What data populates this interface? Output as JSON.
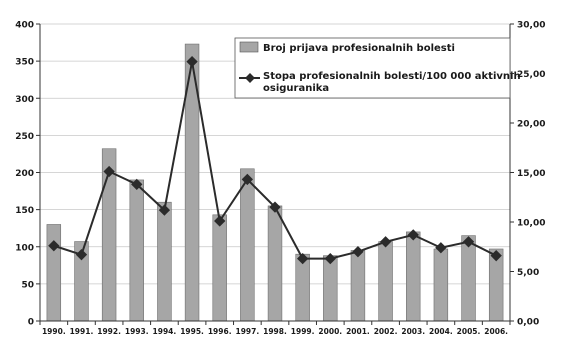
{
  "chart_data": {
    "type": "bar",
    "categories": [
      "1990.",
      "1991.",
      "1992.",
      "1993.",
      "1994.",
      "1995.",
      "1996.",
      "1997.",
      "1998.",
      "1999.",
      "2000.",
      "2001.",
      "2002.",
      "2003.",
      "2004.",
      "2005.",
      "2006."
    ],
    "series": [
      {
        "name": "Broj prijava profesionalnih bolesti",
        "type": "bar",
        "axis": "left",
        "color": "#a6a6a6",
        "values": [
          130,
          107,
          232,
          190,
          160,
          373,
          143,
          205,
          155,
          90,
          88,
          95,
          107,
          120,
          97,
          115,
          97
        ]
      },
      {
        "name": "Stopa profesionalnih bolesti/100 000 aktivnih osiguranika",
        "type": "line",
        "axis": "right",
        "color": "#2b2b2b",
        "values": [
          7.6,
          6.7,
          15.1,
          13.8,
          11.2,
          26.2,
          10.1,
          14.3,
          11.5,
          6.3,
          6.3,
          7.0,
          8.0,
          8.7,
          7.4,
          8.0,
          6.6
        ]
      }
    ],
    "y_left": {
      "ylim": [
        0,
        400
      ],
      "ticks": [
        "0",
        "50",
        "100",
        "150",
        "200",
        "250",
        "300",
        "350",
        "400"
      ]
    },
    "y_right": {
      "ylim": [
        0,
        30
      ],
      "ticks": [
        "0,00",
        "5,00",
        "10,00",
        "15,00",
        "20,00",
        "25,00",
        "30,00"
      ]
    },
    "grid": true,
    "legend_position": "top-right",
    "legend": [
      "Broj prijava profesionalnih bolesti",
      "Stopa profesionalnih bolesti/100 000 aktivnih",
      "osiguranika"
    ],
    "title": "",
    "xlabel": "",
    "ylabel": ""
  }
}
